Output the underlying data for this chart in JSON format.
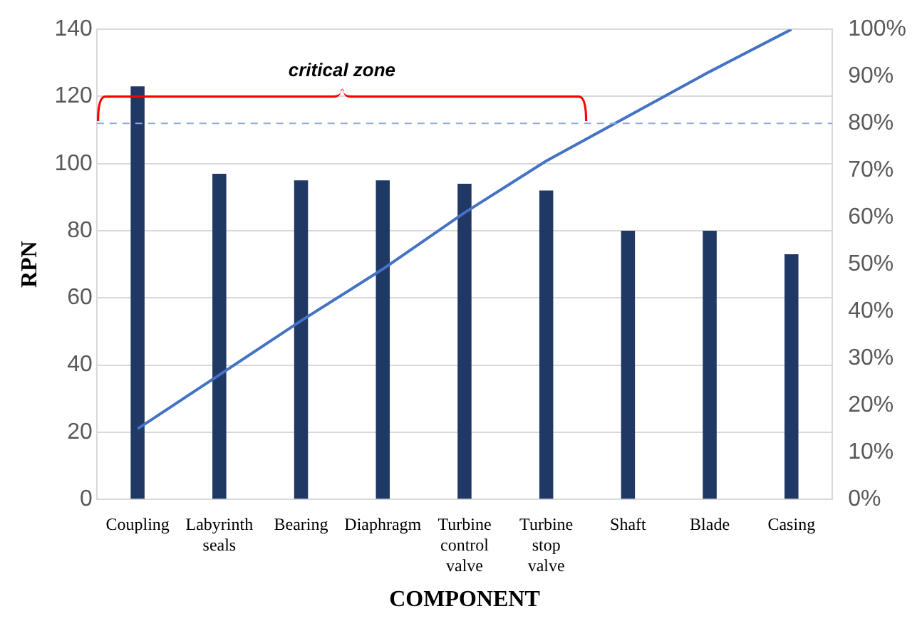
{
  "chart_data": {
    "type": "bar",
    "xlabel": "COMPONENT",
    "ylabel": "RPN",
    "categories": [
      "Coupling",
      "Labyrinth seals",
      "Bearing",
      "Diaphragm",
      "Turbine control valve",
      "Turbine stop valve",
      "Shaft",
      "Blade",
      "Casing"
    ],
    "series": [
      {
        "color": "#1f3864",
        "values": [
          123,
          97,
          95,
          95,
          94,
          92,
          80,
          80,
          73
        ]
      },
      {
        "type": "line",
        "axis": "y2",
        "color": "#4472c4",
        "values": [
          15,
          26.5,
          38,
          49,
          61,
          72,
          81.5,
          91,
          100
        ]
      }
    ],
    "ylim": [
      0,
      140
    ],
    "yticks": [
      0,
      20,
      40,
      60,
      80,
      100,
      120,
      140
    ],
    "y2lim": [
      0,
      100
    ],
    "y2ticks": [
      {
        "value": 0,
        "label": "0%"
      },
      {
        "value": 10,
        "label": "10%"
      },
      {
        "value": 20,
        "label": "20%"
      },
      {
        "value": 30,
        "label": "30%"
      },
      {
        "value": 40,
        "label": "40%"
      },
      {
        "value": 50,
        "label": "50%"
      },
      {
        "value": 60,
        "label": "60%"
      },
      {
        "value": 70,
        "label": "70%"
      },
      {
        "value": 80,
        "label": "80%"
      },
      {
        "value": 90,
        "label": "90%"
      },
      {
        "value": 100,
        "label": "100%"
      }
    ],
    "ref_lines": [
      {
        "axis": "y2",
        "value": 80,
        "color": "#8faadc",
        "line_style": "dashed"
      }
    ],
    "annotations": [
      "critical zone"
    ],
    "grid": "y",
    "legend": false,
    "marker": "none"
  }
}
